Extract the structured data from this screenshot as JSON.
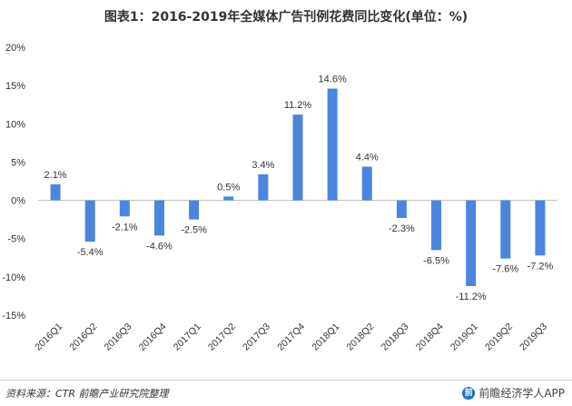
{
  "title": "图表1：2016-2019年全媒体广告刊例花费同比变化(单位：%)",
  "source": "资料来源：CTR 前瞻产业研究院整理",
  "brand": "前瞻经济学人APP",
  "brand_logo_text": "前",
  "colors": {
    "bar": "#4a86e0",
    "axis": "#bfbfbf",
    "grid": "#e6e6e6",
    "text": "#333333"
  },
  "chart_data": {
    "type": "bar",
    "categories": [
      "2016Q1",
      "2016Q2",
      "2016Q3",
      "2016Q4",
      "2017Q1",
      "2017Q2",
      "2017Q3",
      "2017Q4",
      "2018Q1",
      "2018Q2",
      "2018Q3",
      "2018Q4",
      "2019Q1",
      "2019Q2",
      "2019Q3"
    ],
    "values": [
      2.1,
      -5.4,
      -2.1,
      -4.6,
      -2.5,
      0.5,
      3.4,
      11.2,
      14.6,
      4.4,
      -2.3,
      -6.5,
      -11.2,
      -7.6,
      -7.2
    ],
    "data_labels": [
      "2.1%",
      "-5.4%",
      "-2.1%",
      "-4.6%",
      "-2.5%",
      "0.5%",
      "3.4%",
      "11.2%",
      "14.6%",
      "4.4%",
      "-2.3%",
      "-6.5%",
      "-11.2%",
      "-7.6%",
      "-7.2%"
    ],
    "y_ticks": [
      -15,
      -10,
      -5,
      0,
      5,
      10,
      15,
      20
    ],
    "y_tick_labels": [
      "-15%",
      "-10%",
      "-5%",
      "0%",
      "5%",
      "10%",
      "15%",
      "20%"
    ],
    "ylim": [
      -15,
      20
    ],
    "grid": false,
    "xlabel": "",
    "ylabel": ""
  }
}
